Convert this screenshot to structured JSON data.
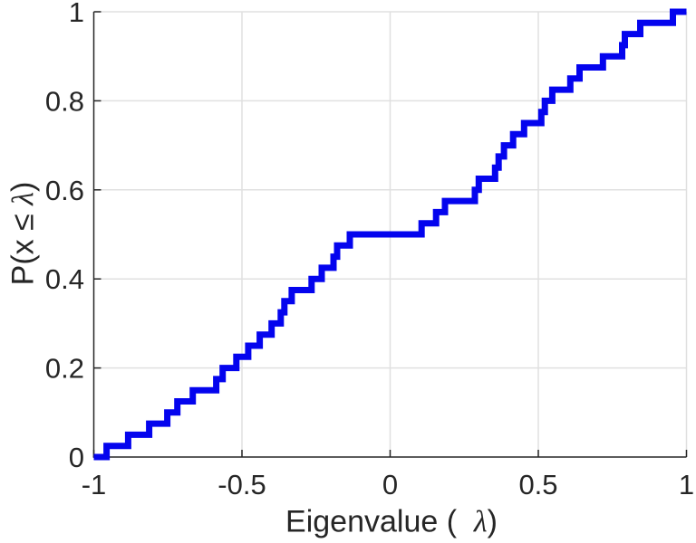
{
  "figure": {
    "background": "#ffffff",
    "xlabel_prefix": "Eigenvalue (  ",
    "xlabel_lambda": "λ",
    "xlabel_suffix": ")",
    "ylabel_prefix": "P(x ≤ ",
    "ylabel_lambda": "λ",
    "ylabel_suffix": ")"
  },
  "chart_data": {
    "type": "line",
    "subtype": "empirical-cdf-step",
    "title": "",
    "xlabel": "Eigenvalue ( λ)",
    "ylabel": "P(x ≤ λ)",
    "xlim": [
      -1,
      1
    ],
    "ylim": [
      0,
      1
    ],
    "grid": true,
    "legend": "none",
    "line_color": "#0404ee",
    "line_width": 7,
    "axis_color": "#262626",
    "grid_color": "#e0e0e0",
    "tick_label_color": "#262626",
    "n_points": 40,
    "step_height": 0.025,
    "cdf_start": {
      "x": -1,
      "y": 0
    },
    "cdf_end": {
      "x": 1,
      "y": 1
    },
    "eigenvalues": [
      -0.957,
      -0.884,
      -0.813,
      -0.752,
      -0.718,
      -0.666,
      -0.587,
      -0.565,
      -0.519,
      -0.479,
      -0.44,
      -0.4,
      -0.369,
      -0.357,
      -0.332,
      -0.265,
      -0.231,
      -0.191,
      -0.179,
      -0.136,
      0.106,
      0.155,
      0.185,
      0.286,
      0.299,
      0.354,
      0.366,
      0.384,
      0.415,
      0.452,
      0.51,
      0.522,
      0.547,
      0.608,
      0.639,
      0.718,
      0.783,
      0.792,
      0.844,
      0.954
    ],
    "xticks": {
      "values": [
        -1,
        -0.5,
        0,
        0.5,
        1
      ],
      "labels": [
        "-1",
        "-0.5",
        "0",
        "0.5",
        "1"
      ]
    },
    "yticks": {
      "values": [
        0,
        0.2,
        0.4,
        0.6,
        0.8,
        1
      ],
      "labels": [
        "0",
        "0.2",
        "0.4",
        "0.6",
        "0.8",
        "1"
      ]
    }
  }
}
